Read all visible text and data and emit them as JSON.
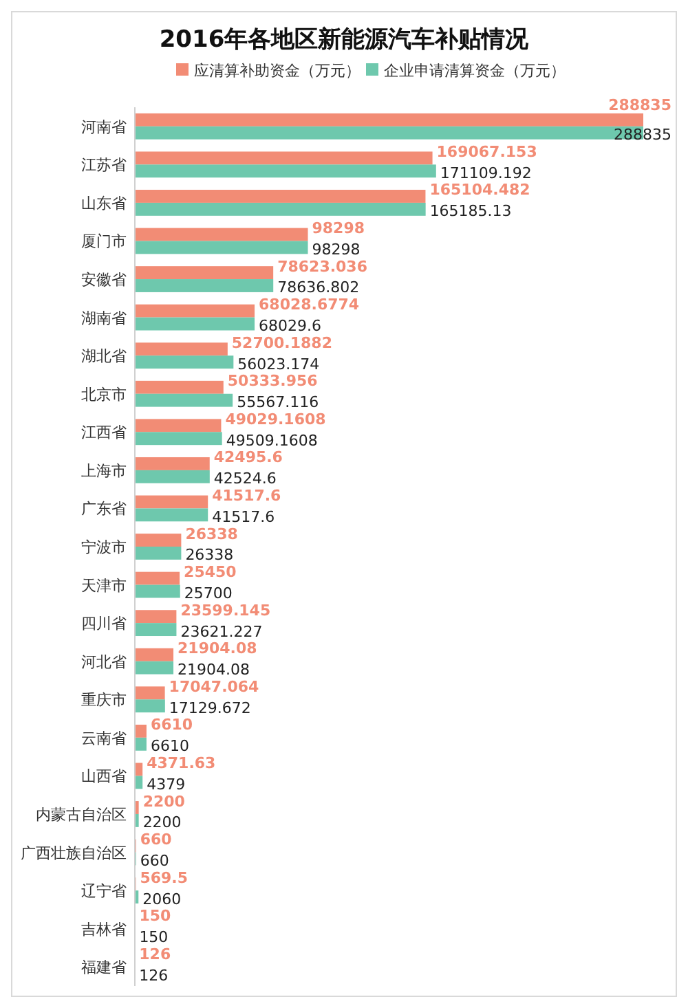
{
  "chart_data": {
    "type": "bar",
    "orientation": "horizontal",
    "title": "2016年各地区新能源汽车补贴情况",
    "categories": [
      "河南省",
      "江苏省",
      "山东省",
      "厦门市",
      "安徽省",
      "湖南省",
      "湖北省",
      "北京市",
      "江西省",
      "上海市",
      "广东省",
      "宁波市",
      "天津市",
      "四川省",
      "河北省",
      "重庆市",
      "云南省",
      "山西省",
      "内蒙古自治区",
      "广西壮族自治区",
      "辽宁省",
      "吉林省",
      "福建省"
    ],
    "series": [
      {
        "name": "应清算补助资金（万元）",
        "color": "#f28c75",
        "values": [
          288835,
          169067.153,
          165104.482,
          98298,
          78623.036,
          68028.6774,
          52700.1882,
          50333.956,
          49029.1608,
          42495.6,
          41517.6,
          26338,
          25450,
          23599.145,
          21904.08,
          17047.064,
          6610,
          4371.63,
          2200,
          660,
          569.5,
          150,
          126
        ]
      },
      {
        "name": "企业申请清算资金（万元）",
        "color": "#6ec8ad",
        "values": [
          288835,
          171109.192,
          165185.13,
          98298,
          78636.802,
          68029.6,
          56023.174,
          55567.116,
          49509.1608,
          42524.6,
          41517.6,
          26338,
          25700,
          23621.227,
          21904.08,
          17129.672,
          6610,
          4379,
          2200,
          660,
          2060,
          150,
          126
        ]
      }
    ],
    "xlim": [
      0,
      290000
    ],
    "tick_labels": "y",
    "data_labels": true,
    "legend": "top"
  }
}
